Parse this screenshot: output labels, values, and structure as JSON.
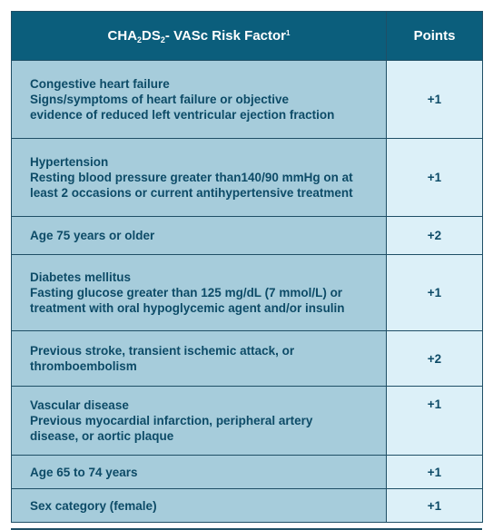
{
  "header": {
    "factor_title": {
      "p1": "CHA",
      "sub1": "2",
      "p2": "DS",
      "sub2": "2",
      "p3": "- VASc Risk Factor",
      "sup": "1"
    },
    "points_title": "Points"
  },
  "rows": [
    {
      "title": "Congestive heart failure",
      "detail": [
        "Signs/symptoms of heart failure or objective",
        "evidence of reduced left ventricular ejection fraction"
      ],
      "points": "+1"
    },
    {
      "title": "Hypertension",
      "detail": [
        "Resting blood pressure greater than140/90 mmHg on at",
        "least 2 occasions or current antihypertensive treatment"
      ],
      "points": "+1"
    },
    {
      "title": "Age 75 years or older",
      "detail": [],
      "points": "+2"
    },
    {
      "title": "Diabetes mellitus",
      "detail": [
        "Fasting glucose greater than 125 mg/dL (7 mmol/L) or",
        "treatment with oral hypoglycemic agent and/or insulin"
      ],
      "points": "+1"
    },
    {
      "title": "Previous stroke, transient ischemic attack, or",
      "detail": [
        "thromboembolism"
      ],
      "points": "+2"
    },
    {
      "title": "Vascular disease",
      "detail": [
        "Previous myocardial infarction, peripheral artery",
        "disease, or aortic plaque"
      ],
      "points": "+1"
    },
    {
      "title": "Age 65 to 74 years",
      "detail": [],
      "points": "+1"
    },
    {
      "title": "Sex category (female)",
      "detail": [],
      "points": "+1"
    }
  ],
  "colors": {
    "header_bg": "#0b5e7c",
    "factor_bg": "#a6ccdb",
    "points_bg": "#dcf0f8",
    "text": "#0d4b67",
    "border": "#1f4f66"
  }
}
